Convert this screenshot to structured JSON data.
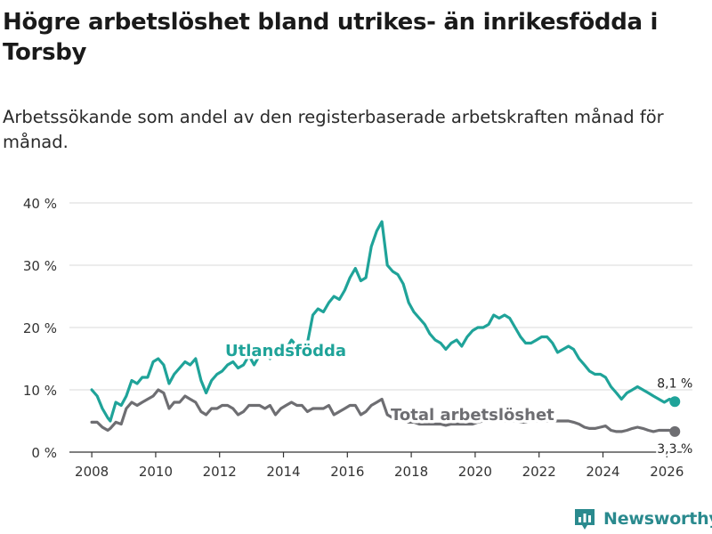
{
  "title": "Högre arbetslöshet bland utrikes- än inrikesfödda i Torsby",
  "subtitle": "Arbetssökande som andel av den registerbaserade arbetskraften månad för månad.",
  "brand": {
    "name": "Newsworthy",
    "logo_icon": "bar-chart-logo-icon"
  },
  "colors": {
    "foreign": "#1fa399",
    "total": "#6e6e72",
    "grid": "#d9d9d9",
    "axis": "#333333",
    "text": "#333333"
  },
  "chart_data": {
    "type": "line",
    "title": "Högre arbetslöshet bland utrikes- än inrikesfödda i Torsby",
    "subtitle": "Arbetssökande som andel av den registerbaserade arbetskraften månad för månad.",
    "xlabel": "",
    "ylabel": "",
    "xlim": [
      2007.3,
      2026.8
    ],
    "ylim": [
      0,
      40
    ],
    "x_ticks": [
      2008,
      2010,
      2012,
      2014,
      2016,
      2018,
      2020,
      2022,
      2024,
      2026
    ],
    "x_tick_labels": [
      "2008",
      "2010",
      "2012",
      "2014",
      "2016",
      "2018",
      "2020",
      "2022",
      "2024",
      "2026"
    ],
    "y_ticks": [
      0,
      10,
      20,
      30,
      40
    ],
    "y_tick_labels": [
      "0 %",
      "10 %",
      "20 %",
      "30 %",
      "40 %"
    ],
    "grid": true,
    "series": [
      {
        "name": "Utlandsfödda",
        "label": "Utlandsfödda",
        "end_label": "8,1 %",
        "x": [
          2008.0,
          2008.17,
          2008.33,
          2008.5,
          2008.58,
          2008.75,
          2008.92,
          2009.08,
          2009.25,
          2009.42,
          2009.58,
          2009.75,
          2009.92,
          2010.08,
          2010.25,
          2010.42,
          2010.58,
          2010.75,
          2010.92,
          2011.08,
          2011.25,
          2011.42,
          2011.58,
          2011.75,
          2011.92,
          2012.08,
          2012.25,
          2012.42,
          2012.58,
          2012.75,
          2012.92,
          2013.08,
          2013.25,
          2013.42,
          2013.58,
          2013.75,
          2013.92,
          2014.08,
          2014.25,
          2014.42,
          2014.58,
          2014.75,
          2014.92,
          2015.08,
          2015.25,
          2015.42,
          2015.58,
          2015.75,
          2015.92,
          2016.08,
          2016.25,
          2016.42,
          2016.58,
          2016.75,
          2016.92,
          2017.08,
          2017.25,
          2017.42,
          2017.58,
          2017.75,
          2017.92,
          2018.08,
          2018.25,
          2018.42,
          2018.58,
          2018.75,
          2018.92,
          2019.08,
          2019.25,
          2019.42,
          2019.58,
          2019.75,
          2019.92,
          2020.08,
          2020.25,
          2020.42,
          2020.58,
          2020.75,
          2020.92,
          2021.08,
          2021.25,
          2021.42,
          2021.58,
          2021.75,
          2021.92,
          2022.08,
          2022.25,
          2022.42,
          2022.58,
          2022.75,
          2022.92,
          2023.08,
          2023.25,
          2023.42,
          2023.58,
          2023.75,
          2023.92,
          2024.08,
          2024.25,
          2024.42,
          2024.58,
          2024.75,
          2024.92,
          2025.08,
          2025.25,
          2025.42,
          2025.58,
          2025.75,
          2025.92,
          2026.08,
          2026.25
        ],
        "values": [
          10.0,
          9.0,
          7.0,
          5.5,
          5.0,
          8.0,
          7.5,
          9.0,
          11.5,
          11.0,
          12.0,
          12.0,
          14.5,
          15.0,
          14.0,
          11.0,
          12.5,
          13.5,
          14.5,
          14.0,
          15.0,
          11.5,
          9.5,
          11.5,
          12.5,
          13.0,
          14.0,
          14.5,
          13.5,
          14.0,
          15.5,
          14.0,
          15.5,
          16.0,
          15.0,
          16.0,
          17.5,
          16.5,
          18.0,
          17.0,
          17.5,
          17.5,
          22.0,
          23.0,
          22.5,
          24.0,
          25.0,
          24.5,
          26.0,
          28.0,
          29.5,
          27.5,
          28.0,
          33.0,
          35.5,
          37.0,
          30.0,
          29.0,
          28.5,
          27.0,
          24.0,
          22.5,
          21.5,
          20.5,
          19.0,
          18.0,
          17.5,
          16.5,
          17.5,
          18.0,
          17.0,
          18.5,
          19.5,
          20.0,
          20.0,
          20.5,
          22.0,
          21.5,
          22.0,
          21.5,
          20.0,
          18.5,
          17.5,
          17.5,
          18.0,
          18.5,
          18.5,
          17.5,
          16.0,
          16.5,
          17.0,
          16.5,
          15.0,
          14.0,
          13.0,
          12.5,
          12.5,
          12.0,
          10.5,
          9.5,
          8.5,
          9.5,
          10.0,
          10.5,
          10.0,
          9.5,
          9.0,
          8.5,
          8.0,
          8.5,
          8.1
        ]
      },
      {
        "name": "Total arbetslöshet",
        "label": "Total arbetslöshet",
        "end_label": "3,3 %",
        "x": [
          2008.0,
          2008.17,
          2008.33,
          2008.5,
          2008.58,
          2008.75,
          2008.92,
          2009.08,
          2009.25,
          2009.42,
          2009.58,
          2009.75,
          2009.92,
          2010.08,
          2010.25,
          2010.42,
          2010.58,
          2010.75,
          2010.92,
          2011.08,
          2011.25,
          2011.42,
          2011.58,
          2011.75,
          2011.92,
          2012.08,
          2012.25,
          2012.42,
          2012.58,
          2012.75,
          2012.92,
          2013.08,
          2013.25,
          2013.42,
          2013.58,
          2013.75,
          2013.92,
          2014.08,
          2014.25,
          2014.42,
          2014.58,
          2014.75,
          2014.92,
          2015.08,
          2015.25,
          2015.42,
          2015.58,
          2015.75,
          2015.92,
          2016.08,
          2016.25,
          2016.42,
          2016.58,
          2016.75,
          2016.92,
          2017.08,
          2017.25,
          2017.42,
          2017.58,
          2017.75,
          2017.92,
          2018.08,
          2018.25,
          2018.42,
          2018.58,
          2018.75,
          2018.92,
          2019.08,
          2019.25,
          2019.42,
          2019.58,
          2019.75,
          2019.92,
          2020.08,
          2020.25,
          2020.42,
          2020.58,
          2020.75,
          2020.92,
          2021.08,
          2021.25,
          2021.42,
          2021.58,
          2021.75,
          2021.92,
          2022.08,
          2022.25,
          2022.42,
          2022.58,
          2022.75,
          2022.92,
          2023.08,
          2023.25,
          2023.42,
          2023.58,
          2023.75,
          2023.92,
          2024.08,
          2024.25,
          2024.42,
          2024.58,
          2024.75,
          2024.92,
          2025.08,
          2025.25,
          2025.42,
          2025.58,
          2025.75,
          2025.92,
          2026.08,
          2026.25
        ],
        "values": [
          4.8,
          4.8,
          4.0,
          3.5,
          3.8,
          4.8,
          4.5,
          7.0,
          8.0,
          7.5,
          8.0,
          8.5,
          9.0,
          10.0,
          9.5,
          7.0,
          8.0,
          8.0,
          9.0,
          8.5,
          8.0,
          6.5,
          6.0,
          7.0,
          7.0,
          7.5,
          7.5,
          7.0,
          6.0,
          6.5,
          7.5,
          7.5,
          7.5,
          7.0,
          7.5,
          6.0,
          7.0,
          7.5,
          8.0,
          7.5,
          7.5,
          6.5,
          7.0,
          7.0,
          7.0,
          7.5,
          6.0,
          6.5,
          7.0,
          7.5,
          7.5,
          6.0,
          6.5,
          7.5,
          8.0,
          8.5,
          6.0,
          5.5,
          5.5,
          5.0,
          4.8,
          4.8,
          4.5,
          4.5,
          4.5,
          4.5,
          4.5,
          4.3,
          4.5,
          4.5,
          4.5,
          4.5,
          4.5,
          4.8,
          5.0,
          5.0,
          5.2,
          5.2,
          5.0,
          5.0,
          5.0,
          4.8,
          4.8,
          5.0,
          5.0,
          5.0,
          5.0,
          5.0,
          5.0,
          5.0,
          5.0,
          4.8,
          4.5,
          4.0,
          3.8,
          3.8,
          4.0,
          4.2,
          3.5,
          3.3,
          3.3,
          3.5,
          3.8,
          4.0,
          3.8,
          3.5,
          3.3,
          3.5,
          3.5,
          3.5,
          3.3
        ]
      }
    ]
  }
}
